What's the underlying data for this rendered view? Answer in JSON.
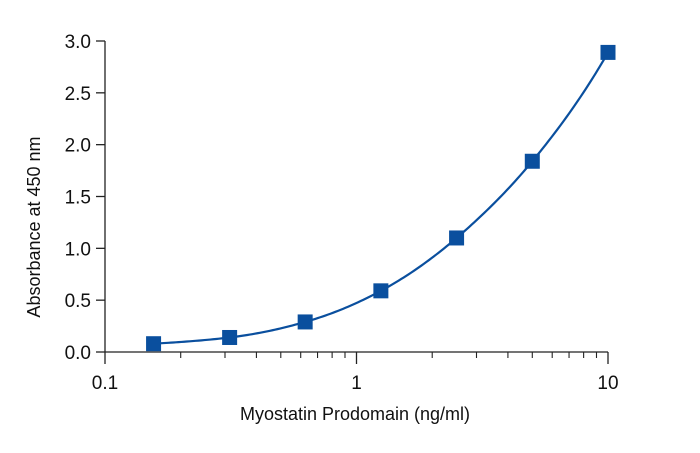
{
  "chart_data": {
    "type": "scatter",
    "xlabel": "Myostatin Prodomain (ng/ml)",
    "ylabel": "Absorbance at 450 nm",
    "x_scale": "log",
    "xlim": [
      0.1,
      10
    ],
    "ylim": [
      0,
      3.0
    ],
    "x_ticks": [
      {
        "value": 0.1,
        "label": "0.1"
      },
      {
        "value": 1,
        "label": "1"
      },
      {
        "value": 10,
        "label": "10"
      }
    ],
    "y_ticks": [
      {
        "value": 0,
        "label": "0.0"
      },
      {
        "value": 0.5,
        "label": "0.5"
      },
      {
        "value": 1.0,
        "label": "1.0"
      },
      {
        "value": 1.5,
        "label": "1.5"
      },
      {
        "value": 2.0,
        "label": "2.0"
      },
      {
        "value": 2.5,
        "label": "2.5"
      },
      {
        "value": 3.0,
        "label": "3.0"
      }
    ],
    "grid": false,
    "series": [
      {
        "x": [
          0.156,
          0.313,
          0.625,
          1.25,
          2.5,
          5,
          10
        ],
        "y": [
          0.08,
          0.14,
          0.29,
          0.59,
          1.1,
          1.84,
          2.89
        ],
        "marker": "square",
        "fit_line": true,
        "color": "#0a4f9e"
      }
    ]
  }
}
